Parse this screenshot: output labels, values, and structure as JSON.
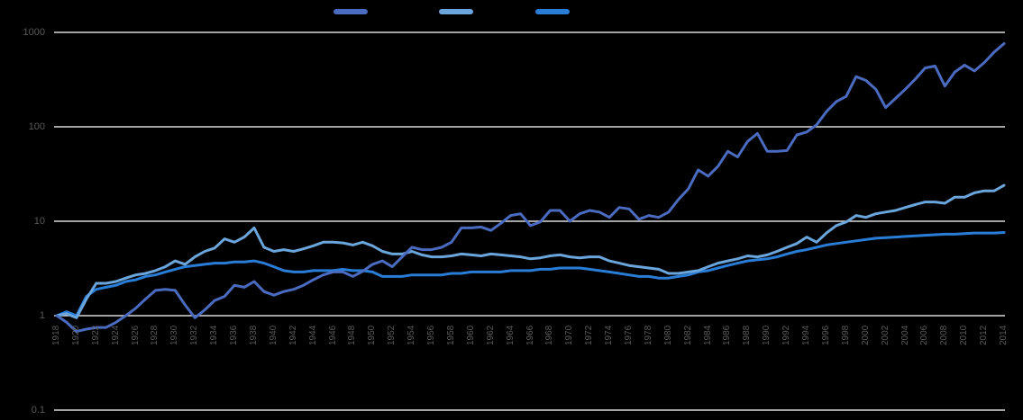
{
  "chart_data": {
    "type": "line",
    "title": "",
    "xlabel": "",
    "ylabel": "",
    "yscale": "log",
    "ylim": [
      0.1,
      1000
    ],
    "yticks": [
      "0.1",
      "1",
      "10",
      "100",
      "1000"
    ],
    "grid": true,
    "legend_position": "top",
    "x": [
      1918,
      1919,
      1920,
      1921,
      1922,
      1923,
      1924,
      1925,
      1926,
      1927,
      1928,
      1929,
      1930,
      1931,
      1932,
      1933,
      1934,
      1935,
      1936,
      1937,
      1938,
      1939,
      1940,
      1941,
      1942,
      1943,
      1944,
      1945,
      1946,
      1947,
      1948,
      1949,
      1950,
      1951,
      1952,
      1953,
      1954,
      1955,
      1956,
      1957,
      1958,
      1959,
      1960,
      1961,
      1962,
      1963,
      1964,
      1965,
      1966,
      1967,
      1968,
      1969,
      1970,
      1971,
      1972,
      1973,
      1974,
      1975,
      1976,
      1977,
      1978,
      1979,
      1980,
      1981,
      1982,
      1983,
      1984,
      1985,
      1986,
      1987,
      1988,
      1989,
      1990,
      1991,
      1992,
      1993,
      1994,
      1995,
      1996,
      1997,
      1998,
      1999,
      2000,
      2001,
      2002,
      2003,
      2004,
      2005,
      2006,
      2007,
      2008,
      2009,
      2010,
      2011,
      2012,
      2013,
      2014
    ],
    "xtick_labels": [
      "1918",
      "1920",
      "1922",
      "1924",
      "1926",
      "1928",
      "1930",
      "1932",
      "1934",
      "1936",
      "1938",
      "1940",
      "1942",
      "1944",
      "1946",
      "1948",
      "1950",
      "1952",
      "1954",
      "1956",
      "1958",
      "1960",
      "1962",
      "1964",
      "1966",
      "1968",
      "1970",
      "1972",
      "1974",
      "1976",
      "1978",
      "1980",
      "1982",
      "1984",
      "1986",
      "1988",
      "1990",
      "1992",
      "1994",
      "1996",
      "1998",
      "2000",
      "2002",
      "2004",
      "2006",
      "2008",
      "2010",
      "2012",
      "2014"
    ],
    "series": [
      {
        "name": "",
        "color": "#4a6bbf",
        "values": [
          1,
          0.85,
          0.68,
          0.72,
          0.75,
          0.75,
          0.85,
          1.0,
          1.2,
          1.5,
          1.85,
          1.9,
          1.85,
          1.3,
          0.95,
          1.15,
          1.45,
          1.6,
          2.1,
          2.0,
          2.3,
          1.8,
          1.65,
          1.8,
          1.9,
          2.1,
          2.4,
          2.7,
          2.9,
          2.9,
          2.6,
          2.95,
          3.5,
          3.8,
          3.3,
          4.2,
          5.3,
          5.0,
          5.0,
          5.3,
          6.0,
          8.5,
          8.5,
          8.7,
          8.0,
          9.5,
          11.5,
          12,
          9,
          9.8,
          13,
          13,
          10,
          12,
          13,
          12.5,
          11,
          14,
          13.5,
          10.5,
          11.5,
          11,
          12.5,
          17,
          22,
          35,
          30,
          38,
          55,
          48,
          70,
          85,
          55,
          55,
          56,
          82,
          88,
          105,
          145,
          185,
          210,
          340,
          310,
          250,
          160,
          200,
          250,
          320,
          420,
          440,
          270,
          380,
          450,
          390,
          480,
          620,
          760
        ]
      },
      {
        "name": "",
        "color": "#6aa5dc",
        "values": [
          1,
          1.05,
          0.95,
          1.5,
          2.2,
          2.2,
          2.3,
          2.5,
          2.7,
          2.8,
          3.0,
          3.3,
          3.8,
          3.5,
          4.2,
          4.8,
          5.2,
          6.5,
          6.0,
          6.8,
          8.5,
          5.3,
          4.8,
          5.0,
          4.8,
          5.1,
          5.5,
          6.0,
          6.0,
          5.9,
          5.6,
          6.0,
          5.5,
          4.8,
          4.5,
          4.5,
          4.8,
          4.4,
          4.2,
          4.2,
          4.3,
          4.5,
          4.4,
          4.3,
          4.5,
          4.4,
          4.3,
          4.2,
          4.0,
          4.1,
          4.3,
          4.4,
          4.2,
          4.1,
          4.2,
          4.2,
          3.8,
          3.6,
          3.4,
          3.3,
          3.2,
          3.1,
          2.8,
          2.8,
          2.9,
          3.0,
          3.3,
          3.6,
          3.8,
          4.0,
          4.3,
          4.2,
          4.4,
          4.8,
          5.3,
          5.8,
          6.8,
          6.0,
          7.5,
          9.0,
          9.8,
          11.5,
          11.0,
          12.0,
          12.5,
          13.0,
          14.0,
          15.0,
          16.0,
          16.0,
          15.5,
          18.0,
          18.0,
          20.0,
          21.0,
          21.0,
          24.0
        ]
      },
      {
        "name": "",
        "color": "#2a7dd6",
        "values": [
          1,
          1.1,
          1.0,
          1.6,
          1.9,
          2.0,
          2.1,
          2.3,
          2.4,
          2.6,
          2.7,
          2.9,
          3.1,
          3.3,
          3.4,
          3.5,
          3.6,
          3.6,
          3.7,
          3.7,
          3.8,
          3.6,
          3.3,
          3.0,
          2.9,
          2.9,
          3.0,
          3.0,
          3.0,
          3.1,
          3.0,
          3.0,
          2.9,
          2.6,
          2.6,
          2.6,
          2.7,
          2.7,
          2.7,
          2.7,
          2.8,
          2.8,
          2.9,
          2.9,
          2.9,
          2.9,
          3.0,
          3.0,
          3.0,
          3.1,
          3.1,
          3.2,
          3.2,
          3.2,
          3.1,
          3.0,
          2.9,
          2.8,
          2.7,
          2.6,
          2.6,
          2.5,
          2.5,
          2.6,
          2.7,
          2.9,
          3.0,
          3.2,
          3.4,
          3.6,
          3.8,
          3.9,
          4.0,
          4.2,
          4.5,
          4.8,
          5.0,
          5.3,
          5.6,
          5.8,
          6.0,
          6.2,
          6.4,
          6.6,
          6.7,
          6.8,
          6.9,
          7.0,
          7.1,
          7.2,
          7.3,
          7.3,
          7.4,
          7.5,
          7.5,
          7.5,
          7.6
        ]
      }
    ]
  },
  "legend": {
    "items": [
      {
        "label": "",
        "color": "#4a6bbf"
      },
      {
        "label": "",
        "color": "#6aa5dc"
      },
      {
        "label": "",
        "color": "#2a7dd6"
      }
    ]
  },
  "axis": {
    "y_labels": [
      "1000",
      "100",
      "10",
      "1",
      "0.1"
    ]
  }
}
